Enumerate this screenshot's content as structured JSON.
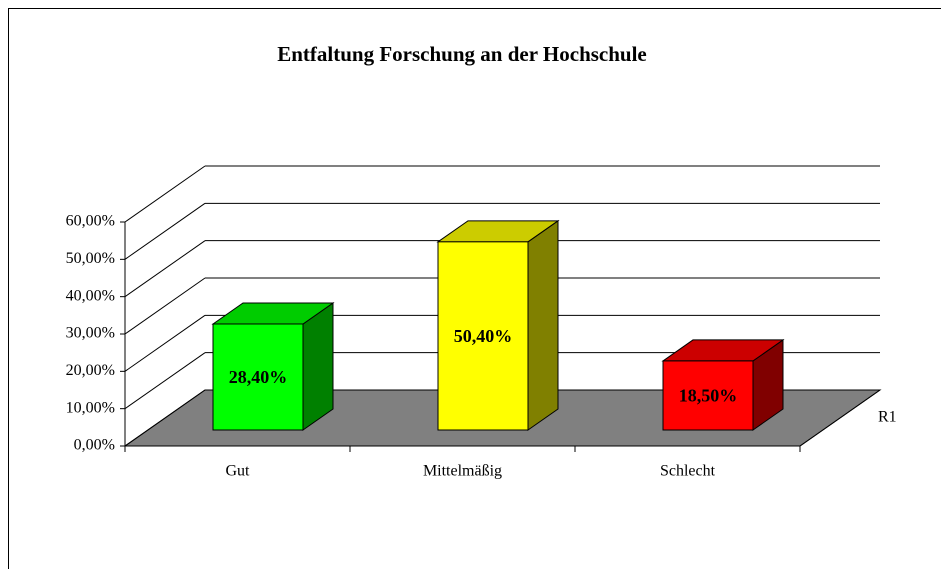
{
  "chart_data": {
    "type": "bar3d",
    "title": "Entfaltung Forschung an der Hochschule",
    "categories": [
      "Gut",
      "Mittelmäßig",
      "Schlecht"
    ],
    "series": [
      {
        "name": "R1",
        "values": [
          28.4,
          50.4,
          18.5
        ],
        "value_labels": [
          "28,40%",
          "50,40%",
          "18,50%"
        ],
        "colors": [
          "#00ff00",
          "#ffff00",
          "#ff0000"
        ]
      }
    ],
    "ylim": [
      0,
      60
    ],
    "yticks": [
      {
        "value": 0,
        "label": "0,00%"
      },
      {
        "value": 10,
        "label": "10,00%"
      },
      {
        "value": 20,
        "label": "20,00%"
      },
      {
        "value": 30,
        "label": "30,00%"
      },
      {
        "value": 40,
        "label": "40,00%"
      },
      {
        "value": 50,
        "label": "50,00%"
      },
      {
        "value": 60,
        "label": "60,00%"
      }
    ],
    "grid": true
  }
}
